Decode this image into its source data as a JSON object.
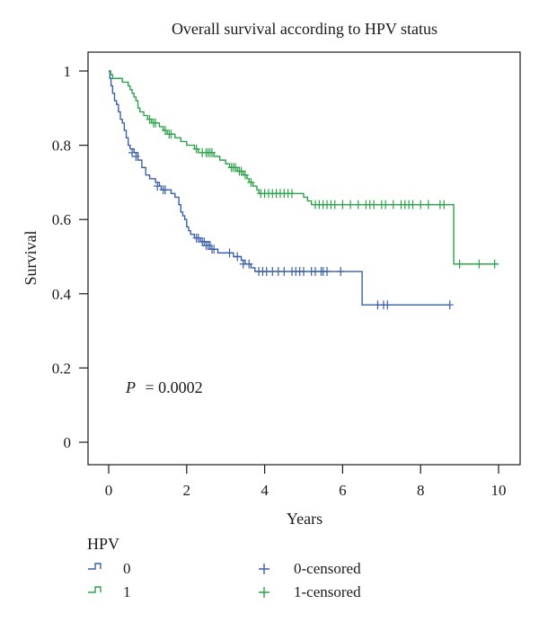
{
  "chart_data": {
    "type": "line",
    "chart_kind": "kaplan-meier step curves with censoring marks",
    "title": "Overall survival according to HPV status",
    "xlabel": "Years",
    "ylabel": "Survival",
    "xlim": [
      0,
      10
    ],
    "ylim": [
      0,
      1
    ],
    "xticks": [
      0,
      2,
      4,
      6,
      8,
      10
    ],
    "yticks": [
      0,
      0.2,
      0.4,
      0.6,
      0.8,
      1
    ],
    "grid": false,
    "annotation": {
      "label": "P",
      "value": "= 0.0002"
    },
    "legend": {
      "title": "HPV",
      "placement": "bottom",
      "lines": [
        {
          "label": "0",
          "color": "#3a5fa8"
        },
        {
          "label": "1",
          "color": "#2ca24a"
        }
      ],
      "censored": [
        {
          "label": "0-censored",
          "color": "#3a5fa8"
        },
        {
          "label": "1-censored",
          "color": "#2ca24a"
        }
      ]
    },
    "series": [
      {
        "name": "0",
        "color": "#3a5fa8",
        "steps": [
          [
            0,
            1.0
          ],
          [
            0.03,
            0.98
          ],
          [
            0.06,
            0.96
          ],
          [
            0.1,
            0.94
          ],
          [
            0.15,
            0.92
          ],
          [
            0.2,
            0.91
          ],
          [
            0.25,
            0.89
          ],
          [
            0.3,
            0.87
          ],
          [
            0.35,
            0.86
          ],
          [
            0.4,
            0.84
          ],
          [
            0.45,
            0.82
          ],
          [
            0.5,
            0.8
          ],
          [
            0.55,
            0.79
          ],
          [
            0.65,
            0.78
          ],
          [
            0.75,
            0.76
          ],
          [
            0.85,
            0.74
          ],
          [
            0.95,
            0.72
          ],
          [
            1.05,
            0.71
          ],
          [
            1.2,
            0.7
          ],
          [
            1.3,
            0.69
          ],
          [
            1.35,
            0.68
          ],
          [
            1.6,
            0.67
          ],
          [
            1.7,
            0.66
          ],
          [
            1.8,
            0.64
          ],
          [
            1.85,
            0.62
          ],
          [
            1.9,
            0.61
          ],
          [
            1.95,
            0.6
          ],
          [
            2.0,
            0.58
          ],
          [
            2.05,
            0.57
          ],
          [
            2.1,
            0.56
          ],
          [
            2.2,
            0.55
          ],
          [
            2.35,
            0.54
          ],
          [
            2.6,
            0.52
          ],
          [
            2.8,
            0.51
          ],
          [
            3.2,
            0.5
          ],
          [
            3.4,
            0.49
          ],
          [
            3.5,
            0.48
          ],
          [
            3.65,
            0.47
          ],
          [
            3.75,
            0.46
          ],
          [
            6.5,
            0.37
          ]
        ],
        "end_x": 8.75,
        "censored": [
          [
            0.6,
            0.78
          ],
          [
            0.7,
            0.77
          ],
          [
            1.25,
            0.69
          ],
          [
            1.4,
            0.68
          ],
          [
            1.45,
            0.68
          ],
          [
            2.25,
            0.55
          ],
          [
            2.3,
            0.55
          ],
          [
            2.4,
            0.54
          ],
          [
            2.45,
            0.54
          ],
          [
            2.5,
            0.53
          ],
          [
            2.55,
            0.53
          ],
          [
            2.65,
            0.52
          ],
          [
            2.7,
            0.52
          ],
          [
            3.1,
            0.51
          ],
          [
            3.3,
            0.5
          ],
          [
            3.45,
            0.48
          ],
          [
            3.6,
            0.48
          ],
          [
            3.85,
            0.46
          ],
          [
            3.95,
            0.46
          ],
          [
            4.05,
            0.46
          ],
          [
            4.2,
            0.46
          ],
          [
            4.35,
            0.46
          ],
          [
            4.5,
            0.46
          ],
          [
            4.7,
            0.46
          ],
          [
            4.8,
            0.46
          ],
          [
            4.9,
            0.46
          ],
          [
            5.0,
            0.46
          ],
          [
            5.2,
            0.46
          ],
          [
            5.3,
            0.46
          ],
          [
            5.45,
            0.46
          ],
          [
            5.5,
            0.46
          ],
          [
            5.6,
            0.46
          ],
          [
            5.95,
            0.46
          ],
          [
            6.9,
            0.37
          ],
          [
            7.05,
            0.37
          ],
          [
            7.15,
            0.37
          ],
          [
            8.75,
            0.37
          ]
        ]
      },
      {
        "name": "1",
        "color": "#2ca24a",
        "steps": [
          [
            0,
            1.0
          ],
          [
            0.05,
            0.99
          ],
          [
            0.1,
            0.98
          ],
          [
            0.35,
            0.97
          ],
          [
            0.5,
            0.96
          ],
          [
            0.55,
            0.95
          ],
          [
            0.6,
            0.94
          ],
          [
            0.65,
            0.93
          ],
          [
            0.7,
            0.92
          ],
          [
            0.75,
            0.9
          ],
          [
            0.8,
            0.89
          ],
          [
            0.9,
            0.88
          ],
          [
            1.0,
            0.87
          ],
          [
            1.1,
            0.86
          ],
          [
            1.3,
            0.85
          ],
          [
            1.4,
            0.84
          ],
          [
            1.5,
            0.83
          ],
          [
            1.7,
            0.82
          ],
          [
            1.85,
            0.81
          ],
          [
            2.0,
            0.8
          ],
          [
            2.2,
            0.79
          ],
          [
            2.3,
            0.78
          ],
          [
            2.7,
            0.77
          ],
          [
            2.85,
            0.76
          ],
          [
            3.0,
            0.75
          ],
          [
            3.1,
            0.74
          ],
          [
            3.3,
            0.73
          ],
          [
            3.45,
            0.72
          ],
          [
            3.55,
            0.71
          ],
          [
            3.6,
            0.7
          ],
          [
            3.7,
            0.69
          ],
          [
            3.8,
            0.68
          ],
          [
            3.85,
            0.67
          ],
          [
            5.0,
            0.66
          ],
          [
            5.1,
            0.65
          ],
          [
            5.2,
            0.64
          ],
          [
            8.85,
            0.48
          ]
        ],
        "end_x": 10.0,
        "censored": [
          [
            1.05,
            0.87
          ],
          [
            1.15,
            0.86
          ],
          [
            1.2,
            0.86
          ],
          [
            1.45,
            0.84
          ],
          [
            1.55,
            0.83
          ],
          [
            1.6,
            0.83
          ],
          [
            2.25,
            0.79
          ],
          [
            2.4,
            0.78
          ],
          [
            2.5,
            0.78
          ],
          [
            2.55,
            0.78
          ],
          [
            2.6,
            0.78
          ],
          [
            2.65,
            0.78
          ],
          [
            3.15,
            0.74
          ],
          [
            3.2,
            0.74
          ],
          [
            3.25,
            0.74
          ],
          [
            3.35,
            0.73
          ],
          [
            3.4,
            0.73
          ],
          [
            3.5,
            0.72
          ],
          [
            3.65,
            0.7
          ],
          [
            3.9,
            0.67
          ],
          [
            4.0,
            0.67
          ],
          [
            4.1,
            0.67
          ],
          [
            4.2,
            0.67
          ],
          [
            4.3,
            0.67
          ],
          [
            4.4,
            0.67
          ],
          [
            4.5,
            0.67
          ],
          [
            4.6,
            0.67
          ],
          [
            4.7,
            0.67
          ],
          [
            5.3,
            0.64
          ],
          [
            5.4,
            0.64
          ],
          [
            5.5,
            0.64
          ],
          [
            5.6,
            0.64
          ],
          [
            5.7,
            0.64
          ],
          [
            5.8,
            0.64
          ],
          [
            6.0,
            0.64
          ],
          [
            6.2,
            0.64
          ],
          [
            6.4,
            0.64
          ],
          [
            6.6,
            0.64
          ],
          [
            6.7,
            0.64
          ],
          [
            6.8,
            0.64
          ],
          [
            7.0,
            0.64
          ],
          [
            7.1,
            0.64
          ],
          [
            7.3,
            0.64
          ],
          [
            7.5,
            0.64
          ],
          [
            7.6,
            0.64
          ],
          [
            7.7,
            0.64
          ],
          [
            7.8,
            0.64
          ],
          [
            8.0,
            0.64
          ],
          [
            8.2,
            0.64
          ],
          [
            8.5,
            0.64
          ],
          [
            8.6,
            0.64
          ],
          [
            9.0,
            0.48
          ],
          [
            9.5,
            0.48
          ],
          [
            9.9,
            0.48
          ]
        ]
      }
    ]
  }
}
